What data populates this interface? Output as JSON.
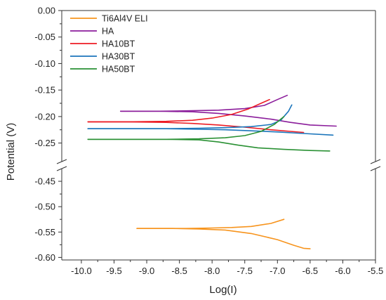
{
  "chart_data": {
    "type": "line",
    "title": "",
    "xlabel": "Log(I)",
    "ylabel": "Potential (V)",
    "xlim": [
      -10.3,
      -5.5
    ],
    "x_ticks": [
      -10.0,
      -9.5,
      -9.0,
      -8.5,
      -8.0,
      -7.5,
      -7.0,
      -6.5,
      -6.0,
      -5.5
    ],
    "x_tick_labels": [
      "-10.0",
      "-9.5",
      "-9.0",
      "-8.5",
      "-8.0",
      "-7.5",
      "-7.0",
      "-6.5",
      "-6.0",
      "-5.5"
    ],
    "y_broken": true,
    "y_segments": [
      {
        "ylim": [
          -0.285,
          0.0
        ],
        "ticks": [
          0.0,
          -0.05,
          -0.1,
          -0.15,
          -0.2,
          -0.25
        ],
        "tick_labels": [
          "0.00",
          "-0.05",
          "-0.10",
          "-0.15",
          "-0.20",
          "-0.25"
        ]
      },
      {
        "ylim": [
          -0.605,
          -0.425
        ],
        "ticks": [
          -0.45,
          -0.5,
          -0.55,
          -0.6
        ],
        "tick_labels": [
          "-0.45",
          "-0.50",
          "-0.55",
          "-0.60"
        ]
      }
    ],
    "grid": false,
    "legend_position": "top-left",
    "series": [
      {
        "name": "Ti6Al4V ELI",
        "color": "#f7941d",
        "segment": 1,
        "branches": [
          [
            [
              -9.15,
              -0.543
            ],
            [
              -8.8,
              -0.543
            ],
            [
              -8.4,
              -0.543
            ],
            [
              -8.0,
              -0.542
            ],
            [
              -7.7,
              -0.541
            ],
            [
              -7.4,
              -0.539
            ],
            [
              -7.1,
              -0.533
            ],
            [
              -6.9,
              -0.525
            ]
          ],
          [
            [
              -9.15,
              -0.543
            ],
            [
              -8.6,
              -0.543
            ],
            [
              -8.2,
              -0.544
            ],
            [
              -7.8,
              -0.546
            ],
            [
              -7.4,
              -0.553
            ],
            [
              -7.0,
              -0.565
            ],
            [
              -6.75,
              -0.576
            ],
            [
              -6.6,
              -0.582
            ],
            [
              -6.5,
              -0.583
            ]
          ]
        ]
      },
      {
        "name": "HA",
        "color": "#8b1d9b",
        "segment": 0,
        "branches": [
          [
            [
              -9.4,
              -0.19
            ],
            [
              -8.8,
              -0.19
            ],
            [
              -8.3,
              -0.189
            ],
            [
              -7.9,
              -0.188
            ],
            [
              -7.5,
              -0.185
            ],
            [
              -7.2,
              -0.179
            ],
            [
              -7.0,
              -0.168
            ],
            [
              -6.85,
              -0.16
            ]
          ],
          [
            [
              -9.4,
              -0.19
            ],
            [
              -8.8,
              -0.19
            ],
            [
              -8.3,
              -0.191
            ],
            [
              -7.9,
              -0.194
            ],
            [
              -7.5,
              -0.199
            ],
            [
              -7.1,
              -0.205
            ],
            [
              -6.8,
              -0.211
            ],
            [
              -6.5,
              -0.216
            ],
            [
              -6.1,
              -0.218
            ]
          ]
        ]
      },
      {
        "name": "HA10BT",
        "color": "#ed1c24",
        "segment": 0,
        "branches": [
          [
            [
              -9.9,
              -0.21
            ],
            [
              -9.3,
              -0.21
            ],
            [
              -8.7,
              -0.209
            ],
            [
              -8.3,
              -0.207
            ],
            [
              -8.0,
              -0.203
            ],
            [
              -7.7,
              -0.196
            ],
            [
              -7.45,
              -0.186
            ],
            [
              -7.25,
              -0.175
            ],
            [
              -7.12,
              -0.168
            ]
          ],
          [
            [
              -9.9,
              -0.21
            ],
            [
              -9.3,
              -0.21
            ],
            [
              -8.7,
              -0.211
            ],
            [
              -8.3,
              -0.213
            ],
            [
              -7.9,
              -0.216
            ],
            [
              -7.5,
              -0.22
            ],
            [
              -7.1,
              -0.225
            ],
            [
              -6.8,
              -0.228
            ],
            [
              -6.6,
              -0.23
            ]
          ]
        ]
      },
      {
        "name": "HA30BT",
        "color": "#1b75bb",
        "segment": 0,
        "branches": [
          [
            [
              -9.9,
              -0.223
            ],
            [
              -9.3,
              -0.223
            ],
            [
              -8.7,
              -0.223
            ],
            [
              -8.2,
              -0.222
            ],
            [
              -7.8,
              -0.221
            ],
            [
              -7.4,
              -0.219
            ],
            [
              -7.1,
              -0.215
            ],
            [
              -6.95,
              -0.207
            ],
            [
              -6.83,
              -0.19
            ],
            [
              -6.78,
              -0.178
            ]
          ],
          [
            [
              -9.9,
              -0.223
            ],
            [
              -9.3,
              -0.223
            ],
            [
              -8.7,
              -0.223
            ],
            [
              -8.2,
              -0.224
            ],
            [
              -7.8,
              -0.225
            ],
            [
              -7.4,
              -0.227
            ],
            [
              -7.0,
              -0.229
            ],
            [
              -6.6,
              -0.232
            ],
            [
              -6.15,
              -0.235
            ]
          ]
        ]
      },
      {
        "name": "HA50BT",
        "color": "#2a9134",
        "segment": 0,
        "branches": [
          [
            [
              -9.9,
              -0.243
            ],
            [
              -9.3,
              -0.243
            ],
            [
              -8.7,
              -0.243
            ],
            [
              -8.2,
              -0.242
            ],
            [
              -7.8,
              -0.24
            ],
            [
              -7.5,
              -0.236
            ],
            [
              -7.25,
              -0.228
            ],
            [
              -7.05,
              -0.215
            ],
            [
              -6.9,
              -0.2
            ]
          ],
          [
            [
              -9.9,
              -0.243
            ],
            [
              -9.3,
              -0.243
            ],
            [
              -8.7,
              -0.243
            ],
            [
              -8.2,
              -0.244
            ],
            [
              -7.9,
              -0.248
            ],
            [
              -7.6,
              -0.254
            ],
            [
              -7.3,
              -0.259
            ],
            [
              -6.9,
              -0.262
            ],
            [
              -6.5,
              -0.264
            ],
            [
              -6.2,
              -0.265
            ]
          ]
        ]
      }
    ]
  }
}
